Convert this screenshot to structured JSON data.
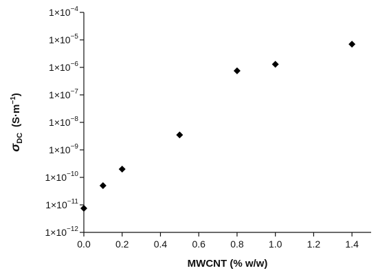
{
  "chart_data": {
    "type": "scatter",
    "title": "",
    "xlabel": "MWCNT (% w/w)",
    "ylabel": {
      "symbol": "σ",
      "subscript": "DC",
      "units": "(S·m",
      "units_exp": "−1",
      "units_close": ")"
    },
    "x_scale": "linear",
    "y_scale": "log",
    "xlim": [
      0.0,
      1.5
    ],
    "ylim": [
      1e-12,
      0.0001
    ],
    "x_ticks": [
      {
        "value": 0.0,
        "label": "0.0"
      },
      {
        "value": 0.2,
        "label": "0.2"
      },
      {
        "value": 0.4,
        "label": "0.4"
      },
      {
        "value": 0.6,
        "label": "0.6"
      },
      {
        "value": 0.8,
        "label": "0.8"
      },
      {
        "value": 1.0,
        "label": "1.0"
      },
      {
        "value": 1.2,
        "label": "1.2"
      },
      {
        "value": 1.4,
        "label": "1.4"
      }
    ],
    "y_ticks": [
      {
        "value": 1e-12,
        "base": "1×10",
        "exp": "−12"
      },
      {
        "value": 1e-11,
        "base": "1×10",
        "exp": "−11"
      },
      {
        "value": 1e-10,
        "base": "1×10",
        "exp": "−10"
      },
      {
        "value": 1e-09,
        "base": "1×10",
        "exp": "−9"
      },
      {
        "value": 1e-08,
        "base": "1×10",
        "exp": "−8"
      },
      {
        "value": 1e-07,
        "base": "1×10",
        "exp": "−7"
      },
      {
        "value": 1e-06,
        "base": "1×10",
        "exp": "−6"
      },
      {
        "value": 1e-05,
        "base": "1×10",
        "exp": "−5"
      },
      {
        "value": 0.0001,
        "base": "1×10",
        "exp": "−4"
      }
    ],
    "grid": false,
    "legend": "none",
    "marker": "diamond",
    "marker_color": "#000000",
    "points": [
      {
        "x": 0.0,
        "y": 7.5e-12
      },
      {
        "x": 0.1,
        "y": 5e-11
      },
      {
        "x": 0.2,
        "y": 2e-10
      },
      {
        "x": 0.5,
        "y": 3.5e-09
      },
      {
        "x": 0.8,
        "y": 7.5e-07
      },
      {
        "x": 1.0,
        "y": 1.3e-06
      },
      {
        "x": 1.4,
        "y": 7e-06
      }
    ]
  }
}
